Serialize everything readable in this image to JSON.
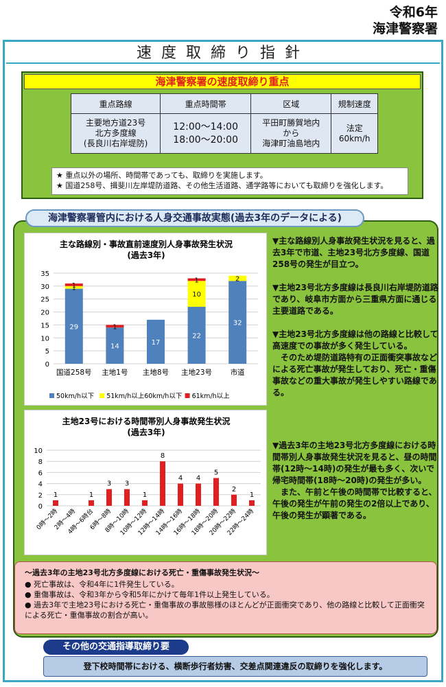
{
  "header": {
    "year": "令和6年",
    "org": "海津警察署"
  },
  "page_title": "速度取締り指針",
  "priority": {
    "title": "海津警察署の速度取締り重点",
    "columns": [
      "重点路線",
      "重点時間帯",
      "区域",
      "規制速度"
    ],
    "route": [
      "主要地方道23号",
      "北方多度線",
      "(長良川右岸堤防)"
    ],
    "times": [
      "12:00～14:00",
      "18:00～20:00"
    ],
    "area": [
      "平田町勝賀地内",
      "から",
      "海津町油島地内"
    ],
    "speed": [
      "法定",
      "60km/h"
    ],
    "notes": [
      "★ 重点以外の場所、時間帯であっても、取締りを実施します。",
      "★ 国道258号、揖斐川左岸堤防道路、その他生活道路、通学路等においても取締りを強化します。"
    ]
  },
  "section_title": "海津警察署管内における人身交通事故実態(過去3年のデータによる)",
  "chart_data": [
    {
      "type": "bar",
      "title": "主な路線別・事故直前速度別人身事故発生状況",
      "subtitle": "(過去3年)",
      "categories": [
        "国道258号",
        "主地1号",
        "主地8号",
        "主地23号",
        "市道"
      ],
      "series": [
        {
          "name": "50km/h以下",
          "values": [
            29,
            14,
            17,
            22,
            32
          ]
        },
        {
          "name": "51km/h以上60km/h以下",
          "values": [
            1,
            0,
            0,
            10,
            2
          ]
        },
        {
          "name": "61km/h以上",
          "values": [
            1,
            1,
            0,
            1,
            0
          ]
        }
      ],
      "ylim": [
        0,
        35
      ],
      "yticks": [
        "0",
        "5",
        "10",
        "15",
        "20",
        "25",
        "30",
        "35"
      ],
      "colors": [
        "#4f81bd",
        "#ffff00",
        "#e02020"
      ],
      "grid": true,
      "legend": "bottom"
    },
    {
      "type": "bar",
      "title": "主地23号における時間帯別人身事故発生状況",
      "subtitle": "(過去3年)",
      "categories": [
        "0時～2時",
        "2時～4時",
        "4時～6時台",
        "6時～8時",
        "8時～10時",
        "10時～12時",
        "12時～14時",
        "14時～16時",
        "16時～18時",
        "18時～20時",
        "20時～22時",
        "22時～24時"
      ],
      "values": [
        1,
        0,
        1,
        3,
        3,
        1,
        8,
        4,
        4,
        5,
        2,
        1
      ],
      "ylim": [
        0,
        10
      ],
      "yticks": [
        "0",
        "2",
        "4",
        "6",
        "8",
        "10"
      ],
      "color": "#e02020",
      "grid": true
    }
  ],
  "side_text": {
    "p1": "▼主な路線別人身事故発生状況を見ると、過去3年で市道、主地23号北方多度線、国道258号の発生が目立つ。",
    "p2": "▼主地23号北方多度線は長良川右岸堤防道路であり、岐阜市方面から三重県方面に通じる主要道路である。",
    "p3": "▼主地23号北方多度線は他の路線と比較して高速度での事故が多く発生している。",
    "p4": "そのため堤防道路特有の正面衝突事故などによる死亡事故が発生しており、死亡・重傷事故などの重大事故が発生しやすい路線である。",
    "p5": "▼過去3年の主地23号北方多度線における時間帯別人身事故発生状況を見ると、昼の時間帯(12時～14時)の発生が最も多く、次いで帰宅時間帯(18時～20時)の発生が多い。",
    "p6": "また、午前と午後の時間帯で比較すると、午後の発生が午前の発生の2倍以上であり、午後の発生が顕著である。"
  },
  "fatal": {
    "title": "～過去3年の主地23号北方多度線における死亡・重傷事故発生状況～",
    "items": [
      "● 死亡事故は、令和4年に1件発生している。",
      "● 重傷事故は、令和3年から令和5年にかけて毎年1件以上発生している。",
      "● 過去3年で主地23号における死亡・重傷事故の事故態様のほとんどが正面衝突であり、他の路線と比較して正面衝突による死亡・重傷事故の割合が高い。"
    ]
  },
  "other": {
    "title": "その他の交通指導取締り要",
    "body": "登下校時間帯における、横断歩行者妨害、交差点関連違反の取締りを強化します。"
  }
}
